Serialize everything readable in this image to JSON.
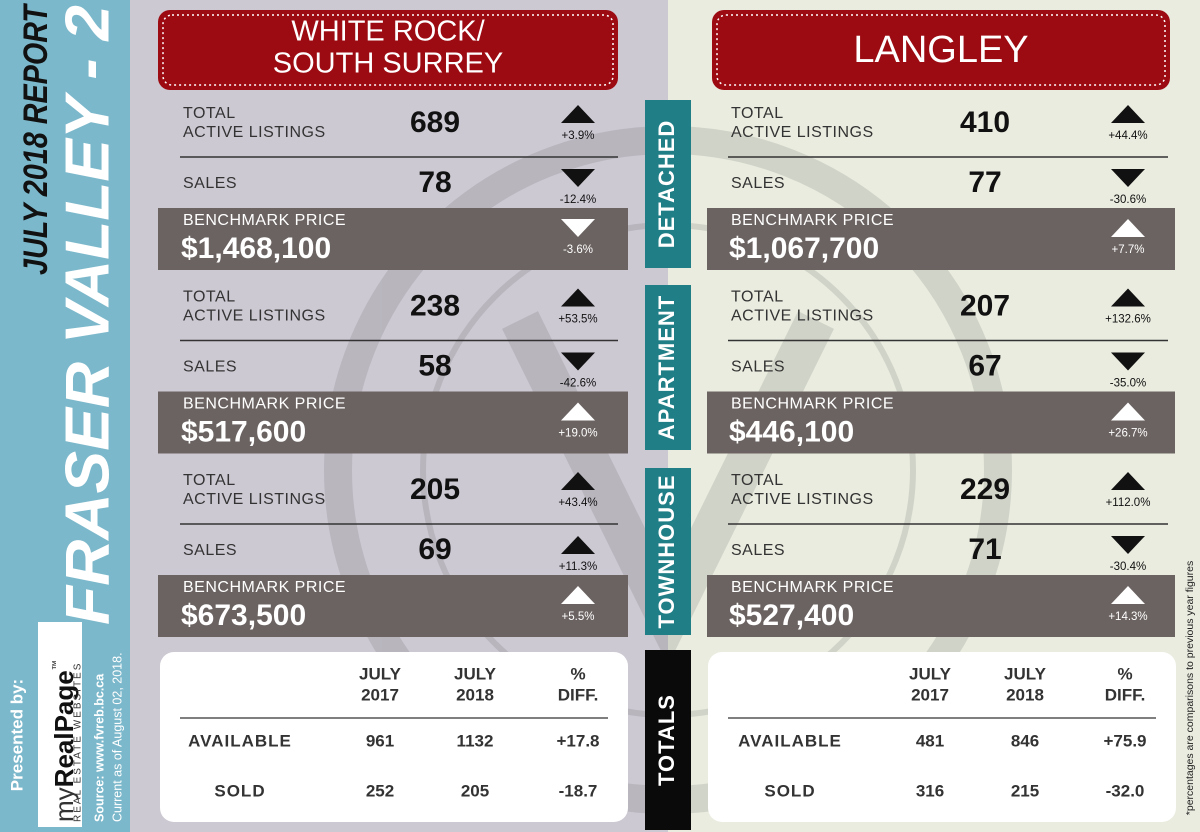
{
  "sidebar": {
    "report": "JULY 2018 REPORT",
    "title": "FRASER VALLEY - 2",
    "presented_by": "Presented by:",
    "brand_my": "my",
    "brand_name": "RealPage",
    "brand_tm": "™",
    "brand_tagline": "REAL ESTATE WEBSITES",
    "source": "Source: www.fvreb.bc.ca",
    "current": "Current as of August 02, 2018."
  },
  "note": "*percentages are comparisons to previous year figures",
  "categories": [
    "DETACHED",
    "APARTMENT",
    "TOWNHOUSE",
    "TOTALS"
  ],
  "regions": [
    {
      "name": [
        "WHITE ROCK/",
        "SOUTH SURREY"
      ],
      "sections": [
        {
          "listings_label": [
            "TOTAL",
            "ACTIVE LISTINGS"
          ],
          "listings": 689,
          "listings_change": "+3.9%",
          "sales_label": "SALES",
          "sales": 78,
          "sales_change": "-12.4%",
          "benchmark_label": "BENCHMARK PRICE",
          "benchmark": "$1,468,100",
          "benchmark_change": "-3.6%"
        },
        {
          "listings_label": [
            "TOTAL",
            "ACTIVE LISTINGS"
          ],
          "listings": 238,
          "listings_change": "+53.5%",
          "sales_label": "SALES",
          "sales": 58,
          "sales_change": "-42.6%",
          "benchmark_label": "BENCHMARK PRICE",
          "benchmark": "$517,600",
          "benchmark_change": "+19.0%"
        },
        {
          "listings_label": [
            "TOTAL",
            "ACTIVE LISTINGS"
          ],
          "listings": 205,
          "listings_change": "+43.4%",
          "sales_label": "SALES",
          "sales": 69,
          "sales_change": "+11.3%",
          "benchmark_label": "BENCHMARK PRICE",
          "benchmark": "$673,500",
          "benchmark_change": "+5.5%"
        }
      ],
      "totals": {
        "header": [
          [
            "JULY",
            "2017"
          ],
          [
            "JULY",
            "2018"
          ],
          [
            "%",
            "DIFF."
          ]
        ],
        "rows": [
          {
            "label": "AVAILABLE",
            "values": [
              961,
              1132,
              "+17.8"
            ]
          },
          {
            "label": "SOLD",
            "values": [
              252,
              205,
              "-18.7"
            ]
          }
        ]
      }
    },
    {
      "name": [
        "LANGLEY"
      ],
      "sections": [
        {
          "listings_label": [
            "TOTAL",
            "ACTIVE LISTINGS"
          ],
          "listings": 410,
          "listings_change": "+44.4%",
          "sales_label": "SALES",
          "sales": 77,
          "sales_change": "-30.6%",
          "benchmark_label": "BENCHMARK PRICE",
          "benchmark": "$1,067,700",
          "benchmark_change": "+7.7%"
        },
        {
          "listings_label": [
            "TOTAL",
            "ACTIVE LISTINGS"
          ],
          "listings": 207,
          "listings_change": "+132.6%",
          "sales_label": "SALES",
          "sales": 67,
          "sales_change": "-35.0%",
          "benchmark_label": "BENCHMARK PRICE",
          "benchmark": "$446,100",
          "benchmark_change": "+26.7%"
        },
        {
          "listings_label": [
            "TOTAL",
            "ACTIVE LISTINGS"
          ],
          "listings": 229,
          "listings_change": "+112.0%",
          "sales_label": "SALES",
          "sales": 71,
          "sales_change": "-30.4%",
          "benchmark_label": "BENCHMARK PRICE",
          "benchmark": "$527,400",
          "benchmark_change": "+14.3%"
        }
      ],
      "totals": {
        "header": [
          [
            "JULY",
            "2017"
          ],
          [
            "JULY",
            "2018"
          ],
          [
            "%",
            "DIFF."
          ]
        ],
        "rows": [
          {
            "label": "AVAILABLE",
            "values": [
              481,
              846,
              "+75.9"
            ]
          },
          {
            "label": "SOLD",
            "values": [
              316,
              215,
              "-32.0"
            ]
          }
        ]
      }
    }
  ]
}
